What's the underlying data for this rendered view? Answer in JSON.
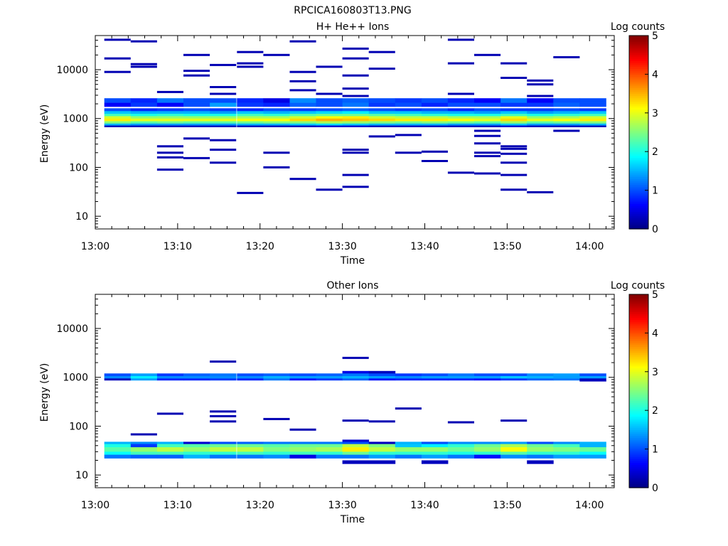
{
  "figure_title": "RPCICA160803T13.PNG",
  "chart_data": [
    {
      "type": "heatmap",
      "title": "H+ He++ Ions",
      "xlabel": "Time",
      "ylabel": "Energy (eV)",
      "colorbar_label": "Log counts",
      "x_ticks": [
        "13:00",
        "13:10",
        "13:20",
        "13:30",
        "13:40",
        "13:50",
        "14:00"
      ],
      "x_range_minutes": [
        0,
        63
      ],
      "y_scale": "log",
      "y_ticks": [
        "10",
        "100",
        "1000",
        "10000"
      ],
      "y_range": [
        5.5,
        50000
      ],
      "color_range": [
        0,
        5
      ],
      "colorbar_ticks": [
        "0",
        "1",
        "2",
        "3",
        "4",
        "5"
      ],
      "time_bins_minutes": [
        2.7,
        5.9,
        9.1,
        12.3,
        15.5,
        18.8,
        22.0,
        25.2,
        28.4,
        31.6,
        34.8,
        38.0,
        41.2,
        44.4,
        47.6,
        50.8,
        54.0,
        57.2,
        60.4
      ],
      "band_rows": [
        {
          "e_lo": 2100,
          "e_hi": 2600,
          "values": [
            1.0,
            0.8,
            1.2,
            1.0,
            1.0,
            0.8,
            0.5,
            1.3,
            1.0,
            1.1,
            1.0,
            0.9,
            1.0,
            0.8,
            0.6,
            1.2,
            0.6,
            1.0,
            1.0
          ]
        },
        {
          "e_lo": 1750,
          "e_hi": 2100,
          "values": [
            0.6,
            0.9,
            0.6,
            1.0,
            1.4,
            0.9,
            0.8,
            1.1,
            1.0,
            1.2,
            0.9,
            1.0,
            0.8,
            1.0,
            1.0,
            0.9,
            0.9,
            1.1,
            1.0
          ]
        },
        {
          "e_lo": 1420,
          "e_hi": 1620,
          "values": [
            1.0,
            0.8,
            0.9,
            1.0,
            0.9,
            0.8,
            1.0,
            0.9,
            1.0,
            1.1,
            1.0,
            0.9,
            1.0,
            0.8,
            1.0,
            0.9,
            0.9,
            1.0,
            0.9
          ]
        },
        {
          "e_lo": 1250,
          "e_hi": 1420,
          "values": [
            1.6,
            1.5,
            1.5,
            1.5,
            1.4,
            1.6,
            1.5,
            1.6,
            1.7,
            1.8,
            1.6,
            1.6,
            1.5,
            1.5,
            1.4,
            1.6,
            1.4,
            1.5,
            1.6
          ]
        },
        {
          "e_lo": 1120,
          "e_hi": 1250,
          "values": [
            2.2,
            2.0,
            2.1,
            2.0,
            2.0,
            2.2,
            2.1,
            2.3,
            2.4,
            2.4,
            2.3,
            2.2,
            2.1,
            2.0,
            2.0,
            2.2,
            2.0,
            2.1,
            2.2
          ]
        },
        {
          "e_lo": 1000,
          "e_hi": 1120,
          "values": [
            2.9,
            2.6,
            2.6,
            2.6,
            2.6,
            2.7,
            2.7,
            2.9,
            3.1,
            3.2,
            2.9,
            2.8,
            2.8,
            2.7,
            2.7,
            3.0,
            2.6,
            2.7,
            2.9
          ]
        },
        {
          "e_lo": 880,
          "e_hi": 1000,
          "values": [
            3.2,
            3.0,
            3.0,
            3.0,
            3.0,
            3.1,
            3.1,
            3.3,
            3.5,
            3.4,
            3.3,
            3.2,
            3.2,
            3.1,
            3.0,
            3.3,
            3.0,
            3.1,
            3.2
          ]
        },
        {
          "e_lo": 790,
          "e_hi": 880,
          "values": [
            2.5,
            2.3,
            2.4,
            2.3,
            2.3,
            2.4,
            2.5,
            2.5,
            2.7,
            2.6,
            2.5,
            2.4,
            2.5,
            2.4,
            2.3,
            2.6,
            2.3,
            2.4,
            2.5
          ]
        },
        {
          "e_lo": 720,
          "e_hi": 790,
          "values": [
            1.5,
            1.4,
            1.4,
            1.4,
            1.4,
            1.5,
            1.5,
            1.6,
            1.7,
            1.6,
            1.5,
            1.5,
            1.5,
            1.4,
            1.4,
            1.6,
            1.4,
            1.4,
            1.5
          ]
        },
        {
          "e_lo": 670,
          "e_hi": 720,
          "values": [
            0.3,
            0.3,
            0.3,
            0.3,
            0.3,
            0.3,
            0.3,
            0.3,
            0.4,
            0.4,
            0.3,
            0.3,
            0.3,
            0.3,
            0.3,
            0.4,
            0.3,
            0.3,
            0.3
          ]
        }
      ],
      "sparse_counts": [
        {
          "t": 2.7,
          "e": 41000
        },
        {
          "t": 2.7,
          "e": 17000
        },
        {
          "t": 2.7,
          "e": 9000
        },
        {
          "t": 5.9,
          "e": 38000
        },
        {
          "t": 5.9,
          "e": 13000
        },
        {
          "t": 5.9,
          "e": 11500
        },
        {
          "t": 9.1,
          "e": 3500
        },
        {
          "t": 9.1,
          "e": 270
        },
        {
          "t": 9.1,
          "e": 200
        },
        {
          "t": 9.1,
          "e": 160
        },
        {
          "t": 9.1,
          "e": 90
        },
        {
          "t": 12.3,
          "e": 20000
        },
        {
          "t": 12.3,
          "e": 9500
        },
        {
          "t": 12.3,
          "e": 7600
        },
        {
          "t": 12.3,
          "e": 390
        },
        {
          "t": 12.3,
          "e": 155
        },
        {
          "t": 15.5,
          "e": 12500
        },
        {
          "t": 15.5,
          "e": 4400
        },
        {
          "t": 15.5,
          "e": 3200
        },
        {
          "t": 15.5,
          "e": 360
        },
        {
          "t": 15.5,
          "e": 230
        },
        {
          "t": 15.5,
          "e": 125
        },
        {
          "t": 18.8,
          "e": 23000
        },
        {
          "t": 18.8,
          "e": 13500
        },
        {
          "t": 18.8,
          "e": 11500
        },
        {
          "t": 18.8,
          "e": 30
        },
        {
          "t": 22.0,
          "e": 20000
        },
        {
          "t": 22.0,
          "e": 200
        },
        {
          "t": 22.0,
          "e": 100
        },
        {
          "t": 25.2,
          "e": 38000
        },
        {
          "t": 25.2,
          "e": 9000
        },
        {
          "t": 25.2,
          "e": 5800
        },
        {
          "t": 25.2,
          "e": 3800
        },
        {
          "t": 25.2,
          "e": 58
        },
        {
          "t": 28.4,
          "e": 11500
        },
        {
          "t": 28.4,
          "e": 3200
        },
        {
          "t": 28.4,
          "e": 35
        },
        {
          "t": 31.6,
          "e": 27000
        },
        {
          "t": 31.6,
          "e": 17000
        },
        {
          "t": 31.6,
          "e": 7600
        },
        {
          "t": 31.6,
          "e": 4100
        },
        {
          "t": 31.6,
          "e": 2900
        },
        {
          "t": 31.6,
          "e": 230
        },
        {
          "t": 31.6,
          "e": 200
        },
        {
          "t": 31.6,
          "e": 70
        },
        {
          "t": 31.6,
          "e": 40
        },
        {
          "t": 34.8,
          "e": 23000
        },
        {
          "t": 34.8,
          "e": 10500
        },
        {
          "t": 34.8,
          "e": 430
        },
        {
          "t": 38.0,
          "e": 460
        },
        {
          "t": 38.0,
          "e": 200
        },
        {
          "t": 41.2,
          "e": 210
        },
        {
          "t": 41.2,
          "e": 135
        },
        {
          "t": 44.4,
          "e": 41000
        },
        {
          "t": 44.4,
          "e": 13500
        },
        {
          "t": 44.4,
          "e": 3200
        },
        {
          "t": 44.4,
          "e": 78
        },
        {
          "t": 47.6,
          "e": 20000
        },
        {
          "t": 47.6,
          "e": 560
        },
        {
          "t": 47.6,
          "e": 440
        },
        {
          "t": 47.6,
          "e": 310
        },
        {
          "t": 47.6,
          "e": 200
        },
        {
          "t": 47.6,
          "e": 170
        },
        {
          "t": 47.6,
          "e": 75
        },
        {
          "t": 50.8,
          "e": 13500
        },
        {
          "t": 50.8,
          "e": 6800
        },
        {
          "t": 50.8,
          "e": 270
        },
        {
          "t": 50.8,
          "e": 240
        },
        {
          "t": 50.8,
          "e": 190
        },
        {
          "t": 50.8,
          "e": 125
        },
        {
          "t": 50.8,
          "e": 70
        },
        {
          "t": 50.8,
          "e": 35
        },
        {
          "t": 54.0,
          "e": 6000
        },
        {
          "t": 54.0,
          "e": 5000
        },
        {
          "t": 54.0,
          "e": 2900
        },
        {
          "t": 54.0,
          "e": 31
        },
        {
          "t": 57.2,
          "e": 18000
        },
        {
          "t": 57.2,
          "e": 560
        }
      ]
    },
    {
      "type": "heatmap",
      "title": "Other Ions",
      "xlabel": "Time",
      "ylabel": "Energy (eV)",
      "colorbar_label": "Log counts",
      "x_ticks": [
        "13:00",
        "13:10",
        "13:20",
        "13:30",
        "13:40",
        "13:50",
        "14:00"
      ],
      "x_range_minutes": [
        0,
        63
      ],
      "y_scale": "log",
      "y_ticks": [
        "10",
        "100",
        "1000",
        "10000"
      ],
      "y_range": [
        5.5,
        50000
      ],
      "color_range": [
        0,
        5
      ],
      "colorbar_ticks": [
        "0",
        "1",
        "2",
        "3",
        "4",
        "5"
      ],
      "time_bins_minutes": [
        2.7,
        5.9,
        9.1,
        12.3,
        15.5,
        18.8,
        22.0,
        25.2,
        28.4,
        31.6,
        34.8,
        38.0,
        41.2,
        44.4,
        47.6,
        50.8,
        54.0,
        57.2,
        60.4
      ],
      "band_rows": [
        {
          "e_lo": 1200,
          "e_hi": 1350,
          "values": [
            0,
            0,
            0,
            0,
            0,
            0,
            0,
            0,
            0,
            0.5,
            0.3,
            0,
            0,
            0,
            0,
            0,
            0,
            0,
            0
          ]
        },
        {
          "e_lo": 1060,
          "e_hi": 1200,
          "values": [
            1.0,
            1.4,
            0.9,
            1.1,
            1.2,
            1.0,
            1.1,
            1.0,
            1.1,
            1.2,
            1.0,
            0.9,
            1.0,
            1.2,
            1.0,
            1.0,
            1.3,
            1.4,
            1.0
          ]
        },
        {
          "e_lo": 950,
          "e_hi": 1060,
          "values": [
            1.3,
            1.8,
            1.3,
            1.3,
            1.3,
            1.3,
            1.5,
            1.4,
            1.4,
            1.5,
            1.4,
            1.3,
            1.4,
            1.4,
            1.4,
            1.6,
            1.5,
            1.4,
            1.4
          ]
        },
        {
          "e_lo": 870,
          "e_hi": 950,
          "values": [
            0.3,
            1.4,
            0.8,
            0.8,
            0.9,
            0.8,
            1.2,
            0.7,
            0.9,
            1.1,
            0.7,
            0.8,
            0.8,
            0.8,
            0.7,
            0.9,
            1.1,
            1.2,
            0.3
          ]
        },
        {
          "e_lo": 830,
          "e_hi": 870,
          "values": [
            0,
            0,
            0,
            0,
            0,
            0,
            0,
            0,
            0,
            0,
            0,
            0,
            0,
            0,
            0,
            0,
            0,
            0,
            0.3
          ]
        },
        {
          "e_lo": 48,
          "e_hi": 53,
          "values": [
            0,
            0,
            0,
            0,
            0,
            0,
            0,
            0,
            0,
            0.4,
            0,
            0,
            0,
            0,
            0,
            0,
            0,
            0,
            0
          ]
        },
        {
          "e_lo": 43,
          "e_hi": 48,
          "values": [
            1.5,
            1.3,
            1.5,
            0.4,
            1.0,
            1.1,
            1.2,
            1.2,
            1.2,
            1.0,
            0.3,
            1.5,
            1.0,
            1.3,
            1.3,
            1.4,
            1.0,
            1.3,
            1.5
          ]
        },
        {
          "e_lo": 37,
          "e_hi": 43,
          "values": [
            2.0,
            0.9,
            2.2,
            2.3,
            2.4,
            2.4,
            2.3,
            2.4,
            2.4,
            2.8,
            2.5,
            1.6,
            1.8,
            2.1,
            2.4,
            2.7,
            2.4,
            2.2,
            1.5
          ]
        },
        {
          "e_lo": 30,
          "e_hi": 37,
          "values": [
            2.3,
            2.6,
            2.8,
            2.6,
            2.8,
            2.8,
            2.5,
            2.6,
            2.7,
            3.2,
            2.8,
            2.6,
            2.6,
            2.4,
            2.6,
            3.1,
            2.6,
            2.5,
            2.4
          ]
        },
        {
          "e_lo": 26,
          "e_hi": 30,
          "values": [
            1.9,
            2.2,
            2.2,
            2.1,
            2.1,
            2.2,
            2.1,
            2.2,
            2.1,
            2.4,
            2.1,
            2.1,
            2.1,
            2.0,
            2.1,
            2.3,
            2.1,
            2.1,
            1.9
          ]
        },
        {
          "e_lo": 22,
          "e_hi": 26,
          "values": [
            1.2,
            1.1,
            1.1,
            1.5,
            1.2,
            1.2,
            1.3,
            0.5,
            1.2,
            1.2,
            1.4,
            1.2,
            1.4,
            1.2,
            0.7,
            1.3,
            1.2,
            1.4,
            1.4
          ]
        },
        {
          "e_lo": 17,
          "e_hi": 20,
          "values": [
            0,
            0,
            0,
            0,
            0,
            0,
            0,
            0,
            0,
            0.3,
            0.3,
            0,
            0.3,
            0,
            0,
            0,
            0.3,
            0,
            0
          ]
        }
      ],
      "sparse_counts": [
        {
          "t": 5.9,
          "e": 68
        },
        {
          "t": 9.1,
          "e": 180
        },
        {
          "t": 15.5,
          "e": 2100
        },
        {
          "t": 15.5,
          "e": 200
        },
        {
          "t": 15.5,
          "e": 160
        },
        {
          "t": 15.5,
          "e": 125
        },
        {
          "t": 22.0,
          "e": 140
        },
        {
          "t": 25.2,
          "e": 85
        },
        {
          "t": 31.6,
          "e": 2500
        },
        {
          "t": 31.6,
          "e": 130
        },
        {
          "t": 34.8,
          "e": 125
        },
        {
          "t": 38.0,
          "e": 230
        },
        {
          "t": 44.4,
          "e": 120
        },
        {
          "t": 50.8,
          "e": 130
        }
      ]
    }
  ]
}
